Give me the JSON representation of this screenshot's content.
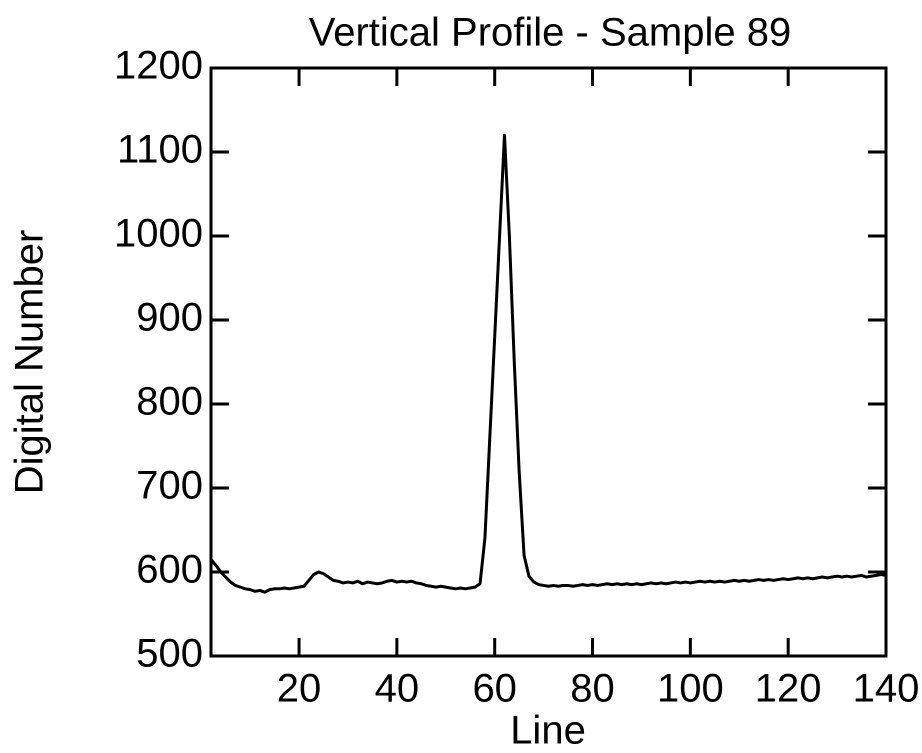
{
  "chart_data": {
    "type": "line",
    "title": "Vertical Profile - Sample 89",
    "x_label": "Line",
    "y_label": "Digital Number",
    "xlim": [
      2,
      140
    ],
    "ylim": [
      500,
      1200
    ],
    "xticks": [
      20,
      40,
      60,
      80,
      100,
      120,
      140
    ],
    "yticks": [
      500,
      600,
      700,
      800,
      900,
      1000,
      1100,
      1200
    ],
    "grid": false,
    "x": [
      2,
      3,
      4,
      5,
      6,
      7,
      8,
      9,
      10,
      11,
      12,
      13,
      14,
      15,
      16,
      17,
      18,
      19,
      20,
      21,
      22,
      23,
      24,
      25,
      26,
      27,
      28,
      29,
      30,
      31,
      32,
      33,
      34,
      35,
      36,
      37,
      38,
      39,
      40,
      41,
      42,
      43,
      44,
      45,
      46,
      47,
      48,
      49,
      50,
      51,
      52,
      53,
      54,
      55,
      56,
      57,
      58,
      59,
      60,
      61,
      62,
      63,
      64,
      65,
      66,
      67,
      68,
      69,
      70,
      71,
      72,
      73,
      74,
      75,
      76,
      77,
      78,
      79,
      80,
      81,
      82,
      83,
      84,
      85,
      86,
      87,
      88,
      89,
      90,
      91,
      92,
      93,
      94,
      95,
      96,
      97,
      98,
      99,
      100,
      101,
      102,
      103,
      104,
      105,
      106,
      107,
      108,
      109,
      110,
      111,
      112,
      113,
      114,
      115,
      116,
      117,
      118,
      119,
      120,
      121,
      122,
      123,
      124,
      125,
      126,
      127,
      128,
      129,
      130,
      131,
      132,
      133,
      134,
      135,
      136,
      137,
      138,
      139,
      140
    ],
    "series": [
      {
        "color": "#000000",
        "values": [
          615,
          608,
          600,
          594,
          588,
          584,
          582,
          580,
          579,
          577,
          578,
          576,
          579,
          580,
          580,
          581,
          580,
          581,
          582,
          583,
          590,
          597,
          600,
          598,
          594,
          590,
          589,
          587,
          588,
          587,
          589,
          586,
          588,
          587,
          586,
          587,
          589,
          590,
          588,
          589,
          588,
          589,
          587,
          586,
          584,
          583,
          582,
          583,
          582,
          581,
          580,
          581,
          580,
          581,
          582,
          586,
          640,
          760,
          880,
          1000,
          1120,
          1000,
          850,
          720,
          620,
          595,
          588,
          585,
          584,
          583,
          584,
          583,
          584,
          584,
          583,
          584,
          585,
          584,
          585,
          584,
          585,
          586,
          585,
          586,
          585,
          586,
          585,
          586,
          585,
          586,
          587,
          586,
          587,
          586,
          587,
          588,
          587,
          588,
          587,
          588,
          589,
          588,
          589,
          588,
          589,
          588,
          589,
          590,
          589,
          590,
          589,
          590,
          591,
          590,
          591,
          590,
          591,
          592,
          591,
          592,
          593,
          592,
          593,
          592,
          593,
          594,
          593,
          594,
          595,
          594,
          595,
          594,
          595,
          596,
          594,
          595,
          596,
          597,
          596
        ]
      }
    ]
  }
}
